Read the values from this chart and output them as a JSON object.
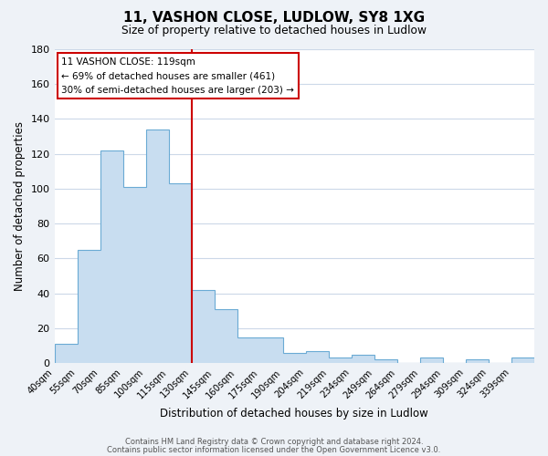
{
  "title": "11, VASHON CLOSE, LUDLOW, SY8 1XG",
  "subtitle": "Size of property relative to detached houses in Ludlow",
  "xlabel": "Distribution of detached houses by size in Ludlow",
  "ylabel": "Number of detached properties",
  "bar_labels": [
    "40sqm",
    "55sqm",
    "70sqm",
    "85sqm",
    "100sqm",
    "115sqm",
    "130sqm",
    "145sqm",
    "160sqm",
    "175sqm",
    "190sqm",
    "204sqm",
    "219sqm",
    "234sqm",
    "249sqm",
    "264sqm",
    "279sqm",
    "294sqm",
    "309sqm",
    "324sqm",
    "339sqm"
  ],
  "bar_values": [
    11,
    65,
    122,
    101,
    134,
    103,
    42,
    31,
    15,
    15,
    6,
    7,
    3,
    5,
    2,
    0,
    3,
    0,
    2,
    0,
    3
  ],
  "bar_color": "#c8ddf0",
  "bar_edge_color": "#6aaad4",
  "vline_color": "#cc0000",
  "vline_pos": 5.0,
  "ylim": [
    0,
    180
  ],
  "yticks": [
    0,
    20,
    40,
    60,
    80,
    100,
    120,
    140,
    160,
    180
  ],
  "annotation_line1": "11 VASHON CLOSE: 119sqm",
  "annotation_line2": "← 69% of detached houses are smaller (461)",
  "annotation_line3": "30% of semi-detached houses are larger (203) →",
  "footer_line1": "Contains HM Land Registry data © Crown copyright and database right 2024.",
  "footer_line2": "Contains public sector information licensed under the Open Government Licence v3.0.",
  "background_color": "#eef2f7",
  "plot_bg_color": "#ffffff",
  "grid_color": "#ccd8e8"
}
